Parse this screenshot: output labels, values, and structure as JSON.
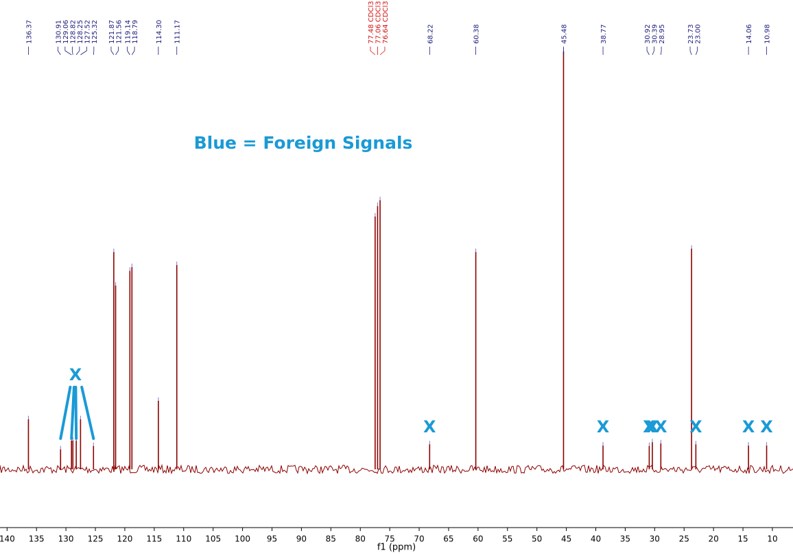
{
  "chart_data": {
    "type": "spectrum",
    "annotation": "Blue = Foreign Signals",
    "xlabel": "f1 (ppm)",
    "xlim": [
      141.2,
      6.5
    ],
    "xticks": [
      140,
      135,
      130,
      125,
      120,
      115,
      110,
      105,
      100,
      95,
      90,
      85,
      80,
      75,
      70,
      65,
      60,
      55,
      50,
      45,
      40,
      35,
      30,
      25,
      20,
      15,
      10
    ],
    "ylim": [
      0,
      100
    ],
    "color": "#8b0000",
    "peaks": {
      "x": [
        136.37,
        130.91,
        129.06,
        128.82,
        128.25,
        127.52,
        125.32,
        121.87,
        121.56,
        119.14,
        118.79,
        114.3,
        111.17,
        77.48,
        77.06,
        76.64,
        68.22,
        60.38,
        45.48,
        38.77,
        30.92,
        30.39,
        28.95,
        23.73,
        23.0,
        14.06,
        10.98
      ],
      "heights": [
        12,
        4.8,
        6.9,
        6.9,
        6.9,
        12,
        5.6,
        52,
        44,
        47.5,
        48.4,
        16.4,
        48.9,
        60.5,
        63,
        64.4,
        6,
        52,
        100,
        5.7,
        5.6,
        6.5,
        6.2,
        52.8,
        6,
        5.7,
        5.7
      ],
      "labels": [
        "136.37",
        "130.91",
        "129.06",
        "128.82",
        "128.25",
        "127.52",
        "125.32",
        "121.87",
        "121.56",
        "119.14",
        "118.79",
        "114.30",
        "111.17",
        "77.48 CDCl3",
        "77.06 CDCl3",
        "76.64 CDCl3",
        "68.22",
        "60.38",
        "45.48",
        "38.77",
        "30.92",
        "30.39",
        "28.95",
        "23.73",
        "23.00",
        "14.06",
        "10.98"
      ],
      "label_colors": [
        "#1a1a7a",
        "#1a1a7a",
        "#1a1a7a",
        "#1a1a7a",
        "#1a1a7a",
        "#1a1a7a",
        "#1a1a7a",
        "#1a1a7a",
        "#1a1a7a",
        "#1a1a7a",
        "#1a1a7a",
        "#1a1a7a",
        "#1a1a7a",
        "#d01010",
        "#d01010",
        "#d01010",
        "#1a1a7a",
        "#1a1a7a",
        "#1a1a7a",
        "#1a1a7a",
        "#1a1a7a",
        "#1a1a7a",
        "#1a1a7a",
        "#1a1a7a",
        "#1a1a7a",
        "#1a1a7a",
        "#1a1a7a"
      ],
      "flags": [
        null,
        "X",
        "X",
        null,
        "X",
        null,
        "X",
        null,
        null,
        null,
        null,
        null,
        null,
        null,
        null,
        null,
        "X",
        null,
        null,
        "X",
        "X",
        "X",
        "X",
        null,
        "X",
        "X",
        "X"
      ]
    },
    "flag_color": "#1a9ad6"
  }
}
